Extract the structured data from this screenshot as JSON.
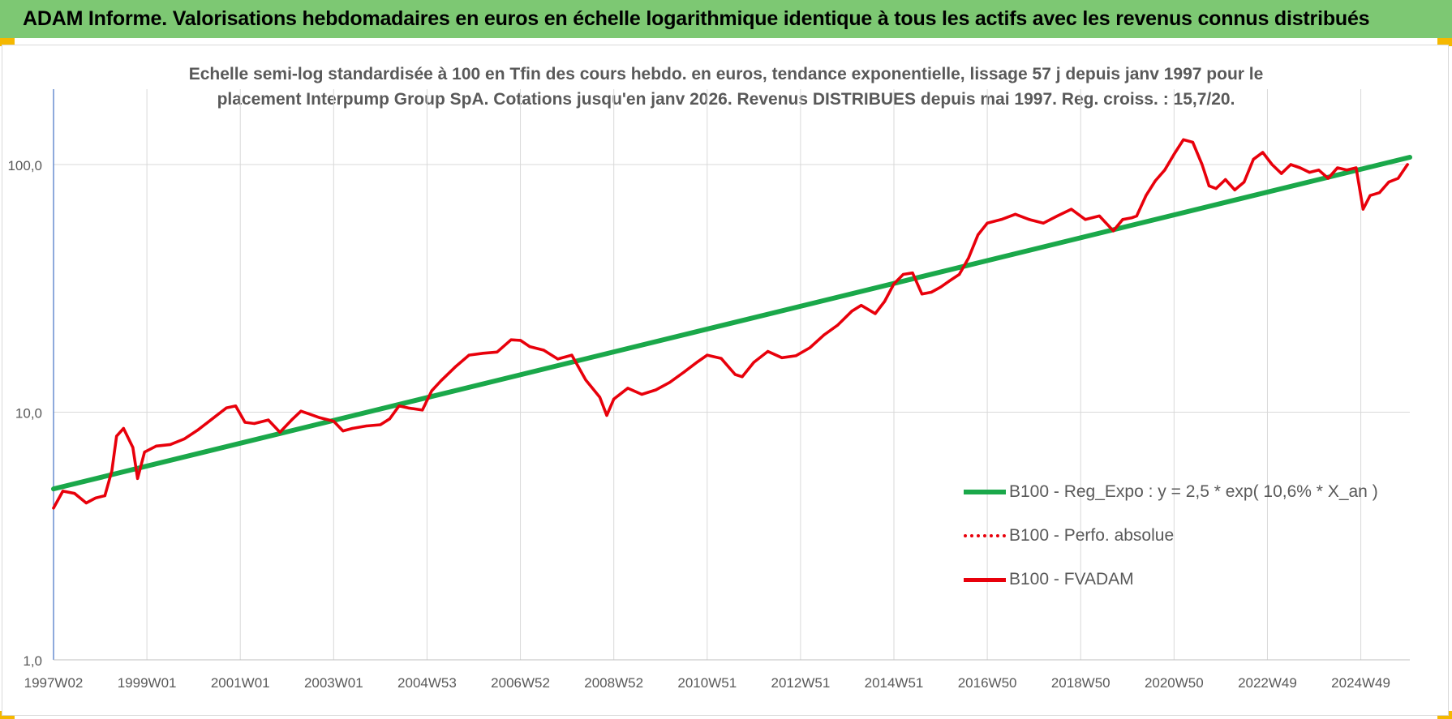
{
  "header": {
    "title": "ADAM Informe. Valorisations hebdomadaires en euros en échelle logarithmique identique à tous les actifs avec les revenus connus distribués"
  },
  "colors": {
    "header_bg": "#7dc873",
    "corner_accent": "#f5b800",
    "trend_line": "#1aa84a",
    "fvadam_line": "#e8000b",
    "grid": "#d9d9d9",
    "axis_text": "#595959"
  },
  "chart_data": {
    "type": "line",
    "title_lines": [
      "Echelle semi-log standardisée à 100 en Tfin des cours hebdo. en euros, tendance exponentielle, lissage 57 j depuis janv 1997 pour le",
      "placement Interpump Group SpA. Cotations jusqu'en janv 2026. Revenus DISTRIBUES depuis mai 1997. Reg. croiss. : 15,7/20."
    ],
    "y_scale": "log",
    "ylim": [
      1,
      180
    ],
    "xlim": [
      1997.0,
      2026.05
    ],
    "y_ticks": [
      {
        "value": 1,
        "label": "1,0"
      },
      {
        "value": 10,
        "label": "10,0"
      },
      {
        "value": 100,
        "label": "100,0"
      }
    ],
    "x_ticks": [
      {
        "value": 1997.0,
        "label": "1997W02"
      },
      {
        "value": 1999.0,
        "label": "1999W01"
      },
      {
        "value": 2001.0,
        "label": "2001W01"
      },
      {
        "value": 2003.0,
        "label": "2003W01"
      },
      {
        "value": 2005.0,
        "label": "2004W53"
      },
      {
        "value": 2007.0,
        "label": "2006W52"
      },
      {
        "value": 2009.0,
        "label": "2008W52"
      },
      {
        "value": 2011.0,
        "label": "2010W51"
      },
      {
        "value": 2013.0,
        "label": "2012W51"
      },
      {
        "value": 2015.0,
        "label": "2014W51"
      },
      {
        "value": 2017.0,
        "label": "2016W50"
      },
      {
        "value": 2019.0,
        "label": "2018W50"
      },
      {
        "value": 2021.0,
        "label": "2020W50"
      },
      {
        "value": 2023.0,
        "label": "2022W49"
      },
      {
        "value": 2025.0,
        "label": "2024W49"
      }
    ],
    "grid": true,
    "legend_position": "bottom-right",
    "series": [
      {
        "name": "B100 - Reg_Expo : y = 2,5 * exp( 10,6% *  X_an )",
        "style": "solid-thick",
        "color": "#1aa84a",
        "x": [
          1997.0,
          2026.05
        ],
        "y": [
          4.9,
          107
        ]
      },
      {
        "name": "B100 - Perfo. absolue",
        "style": "dotted",
        "color": "#e8000b",
        "x": [],
        "y": []
      },
      {
        "name": "B100 - FVADAM",
        "style": "solid",
        "color": "#e8000b",
        "x": [
          1997.0,
          1997.2,
          1997.45,
          1997.7,
          1997.9,
          1998.1,
          1998.25,
          1998.35,
          1998.5,
          1998.7,
          1998.8,
          1998.95,
          1999.2,
          1999.5,
          1999.8,
          2000.1,
          2000.4,
          2000.7,
          2000.9,
          2001.1,
          2001.3,
          2001.6,
          2001.85,
          2002.1,
          2002.3,
          2002.5,
          2002.7,
          2003.0,
          2003.2,
          2003.4,
          2003.7,
          2004.0,
          2004.2,
          2004.4,
          2004.6,
          2004.9,
          2005.1,
          2005.3,
          2005.6,
          2005.9,
          2006.2,
          2006.5,
          2006.8,
          2007.0,
          2007.2,
          2007.5,
          2007.8,
          2008.1,
          2008.4,
          2008.7,
          2008.85,
          2009.0,
          2009.3,
          2009.6,
          2009.9,
          2010.2,
          2010.5,
          2010.8,
          2011.0,
          2011.3,
          2011.6,
          2011.75,
          2012.0,
          2012.3,
          2012.6,
          2012.9,
          2013.2,
          2013.5,
          2013.8,
          2014.1,
          2014.3,
          2014.6,
          2014.8,
          2015.0,
          2015.2,
          2015.4,
          2015.6,
          2015.8,
          2016.0,
          2016.2,
          2016.4,
          2016.6,
          2016.8,
          2017.0,
          2017.3,
          2017.6,
          2017.9,
          2018.2,
          2018.5,
          2018.8,
          2019.1,
          2019.4,
          2019.7,
          2019.9,
          2020.1,
          2020.2,
          2020.4,
          2020.6,
          2020.8,
          2021.0,
          2021.2,
          2021.4,
          2021.6,
          2021.75,
          2021.9,
          2022.1,
          2022.3,
          2022.5,
          2022.7,
          2022.9,
          2023.1,
          2023.3,
          2023.5,
          2023.7,
          2023.9,
          2024.1,
          2024.3,
          2024.5,
          2024.7,
          2024.9,
          2025.05,
          2025.2,
          2025.4,
          2025.6,
          2025.8,
          2026.0
        ],
        "y": [
          4.1,
          4.8,
          4.7,
          4.3,
          4.5,
          4.6,
          5.8,
          8.0,
          8.6,
          7.2,
          5.4,
          6.9,
          7.3,
          7.4,
          7.8,
          8.5,
          9.4,
          10.4,
          10.6,
          9.1,
          9.0,
          9.3,
          8.3,
          9.3,
          10.1,
          9.8,
          9.5,
          9.2,
          8.4,
          8.6,
          8.8,
          8.9,
          9.4,
          10.6,
          10.4,
          10.2,
          12.2,
          13.4,
          15.2,
          17.0,
          17.3,
          17.5,
          19.6,
          19.5,
          18.4,
          17.8,
          16.4,
          17.0,
          13.5,
          11.5,
          9.7,
          11.3,
          12.5,
          11.8,
          12.3,
          13.2,
          14.5,
          16.0,
          17.0,
          16.5,
          14.2,
          13.9,
          15.9,
          17.6,
          16.6,
          16.9,
          18.2,
          20.5,
          22.5,
          25.6,
          27.0,
          25.0,
          28.0,
          33.0,
          36.0,
          36.5,
          30.0,
          30.5,
          32.0,
          34.0,
          36.0,
          42.0,
          52.0,
          58.0,
          60.0,
          63.0,
          60.0,
          58.0,
          62.0,
          66.0,
          60.0,
          62.0,
          54.0,
          60.0,
          61.0,
          62.0,
          75.0,
          86.0,
          95.0,
          110.0,
          126.0,
          123.0,
          100.0,
          82.0,
          80.0,
          87.0,
          79.0,
          85.0,
          105.0,
          112.0,
          100.0,
          92.0,
          100.0,
          97.0,
          93.0,
          95.0,
          88.0,
          97.0,
          95.0,
          97.0,
          66.0,
          75.0,
          77.0,
          85.0,
          88.0,
          100.0
        ]
      }
    ]
  },
  "legend": [
    {
      "label": "B100 - Reg_Expo : y = 2,5 * exp( 10,6% *  X_an )",
      "swatch": "solid-green"
    },
    {
      "label": "B100 - Perfo. absolue",
      "swatch": "dotted-red"
    },
    {
      "label": "B100 - FVADAM",
      "swatch": "solid-red"
    }
  ]
}
